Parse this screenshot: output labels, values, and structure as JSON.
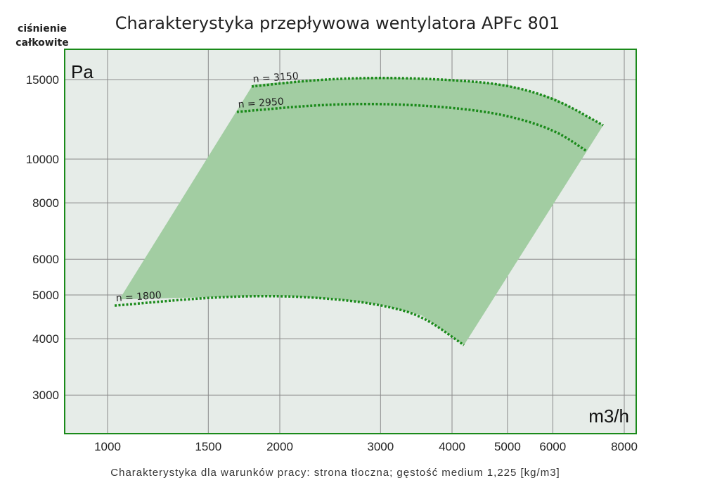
{
  "chart_data": {
    "type": "line",
    "title": "Charakterystyka przepływowa wentylatora APFc 801",
    "ylabel": [
      "ciśnienie",
      "całkowite"
    ],
    "y_unit": "Pa",
    "x_unit": "m3/h",
    "xscale": "log",
    "yscale": "log",
    "xlim": [
      841,
      8417
    ],
    "ylim": [
      2463,
      17500
    ],
    "grid": true,
    "x_ticks": [
      1000,
      1500,
      2000,
      3000,
      4000,
      5000,
      6000,
      8000
    ],
    "x_tick_labels": [
      "1000",
      "1500",
      "2000",
      "3000",
      "4000",
      "5000",
      "6000",
      "8000"
    ],
    "y_ticks": [
      15000,
      10000,
      8000,
      6000,
      5000,
      4000,
      3000
    ],
    "y_tick_labels": [
      "15000",
      "10000",
      "8000",
      "6000",
      "5000",
      "4000",
      "3000"
    ],
    "series": [
      {
        "name": "n = 3150",
        "x": [
          1786,
          2317,
          3000,
          3966,
          4973,
          6063,
          7350
        ],
        "y": [
          14480,
          15000,
          15170,
          15000,
          14630,
          13620,
          11880
        ]
      },
      {
        "name": "n = 2950",
        "x": [
          1683,
          2317,
          3000,
          3966,
          4973,
          6063,
          6886
        ],
        "y": [
          12720,
          13190,
          13280,
          13040,
          12540,
          11590,
          10400
        ]
      },
      {
        "name": "n = 1800",
        "x": [
          1029,
          1516,
          2000,
          2522,
          3000,
          3541,
          4196
        ],
        "y": [
          4735,
          4945,
          4983,
          4895,
          4757,
          4506,
          3870
        ]
      }
    ],
    "operating_area": {
      "x": [
        1049,
        1796,
        2317,
        3000,
        3966,
        4973,
        6063,
        7350,
        4196,
        3541,
        3000,
        2522,
        2000,
        1516,
        1049
      ],
      "y": [
        4890,
        14630,
        15000,
        15170,
        15000,
        14630,
        13620,
        11880,
        3870,
        4506,
        4757,
        4895,
        4983,
        4945,
        4890
      ]
    },
    "colors": {
      "area": "#a2cda2",
      "curve": "#1a8a1a",
      "frame": "#1a8a1a",
      "plot_bg": "#e6ece8",
      "grid": "#8a8a8a"
    },
    "footnote": "Charakterystyka dla warunków pracy: strona tłoczna; gęstość medium 1,225 [kg/m3]"
  }
}
